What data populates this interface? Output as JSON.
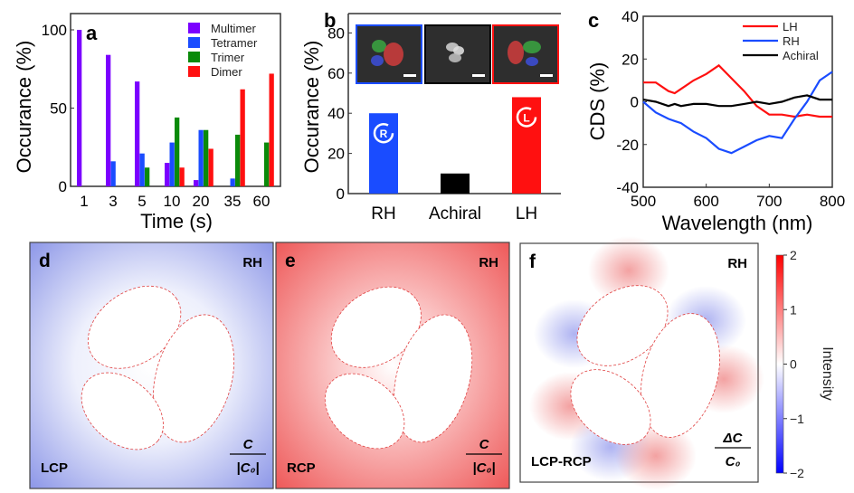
{
  "chart_data": [
    {
      "panel": "a",
      "type": "bar",
      "xlabel": "Time (s)",
      "ylabel": "Occurance (%)",
      "ylim": [
        0,
        110
      ],
      "yticks": [
        0,
        50,
        100
      ],
      "categories": [
        "1",
        "3",
        "5",
        "10",
        "20",
        "35",
        "60"
      ],
      "legend_position": "top-right",
      "series": [
        {
          "name": "Multimer",
          "color": "#7b00ff",
          "values": [
            100,
            84,
            67,
            15,
            4,
            0,
            0
          ]
        },
        {
          "name": "Tetramer",
          "color": "#1a4cff",
          "values": [
            0,
            16,
            21,
            28,
            36,
            5,
            0
          ]
        },
        {
          "name": "Trimer",
          "color": "#0a8a0a",
          "values": [
            0,
            0,
            12,
            44,
            36,
            33,
            28
          ]
        },
        {
          "name": "Dimer",
          "color": "#ff1010",
          "values": [
            0,
            0,
            0,
            12,
            24,
            62,
            72
          ]
        }
      ]
    },
    {
      "panel": "b",
      "type": "bar",
      "xlabel": "",
      "ylabel": "Occurance (%)",
      "ylim": [
        0,
        90
      ],
      "yticks": [
        0,
        20,
        40,
        60,
        80
      ],
      "categories": [
        "RH",
        "Achiral",
        "LH"
      ],
      "values": [
        40,
        10,
        48
      ],
      "colors": [
        "#1a4cff",
        "#000000",
        "#ff1010"
      ],
      "bar_icons": [
        "R",
        "",
        "L"
      ]
    },
    {
      "panel": "c",
      "type": "line",
      "xlabel": "Wavelength (nm)",
      "ylabel": "CDS (%)",
      "xlim": [
        500,
        800
      ],
      "ylim": [
        -40,
        40
      ],
      "xticks": [
        500,
        600,
        700,
        800
      ],
      "yticks": [
        -40,
        -20,
        0,
        20,
        40
      ],
      "legend_position": "top-right",
      "x": [
        500,
        520,
        540,
        550,
        560,
        580,
        600,
        620,
        640,
        660,
        680,
        700,
        720,
        740,
        760,
        780,
        800
      ],
      "series": [
        {
          "name": "LH",
          "color": "#ff1010",
          "values": [
            9,
            9,
            5,
            4,
            6,
            10,
            13,
            17,
            11,
            5,
            -2,
            -6,
            -6,
            -7,
            -6,
            -7,
            -7
          ]
        },
        {
          "name": "RH",
          "color": "#1a4cff",
          "values": [
            0,
            -5,
            -8,
            -9,
            -10,
            -14,
            -17,
            -22,
            -24,
            -21,
            -18,
            -16,
            -17,
            -8,
            0,
            10,
            14
          ]
        },
        {
          "name": "Achiral",
          "color": "#000000",
          "values": [
            1,
            0,
            -2,
            -1,
            -2,
            -1,
            -1,
            -2,
            -2,
            -1,
            0,
            -1,
            0,
            2,
            3,
            1,
            1
          ]
        }
      ]
    }
  ],
  "panels": {
    "a": {
      "label": "a"
    },
    "b": {
      "label": "b"
    },
    "c": {
      "label": "c"
    },
    "d": {
      "label": "d",
      "handedness": "RH",
      "polarization": "LCP",
      "formula_num": "C",
      "formula_den": "|C₀|"
    },
    "e": {
      "label": "e",
      "handedness": "RH",
      "polarization": "RCP",
      "formula_num": "C",
      "formula_den": "|C₀|"
    },
    "f": {
      "label": "f",
      "handedness": "RH",
      "polarization": "LCP-RCP",
      "formula_num": "ΔC",
      "formula_den": "C₀"
    }
  },
  "colorbar": {
    "label": "Intensity",
    "ticks": [
      "2",
      "1",
      "0",
      "−1",
      "−2"
    ],
    "min": -2,
    "max": 2,
    "colors": [
      "#0000ff",
      "#ffffff",
      "#ff0000"
    ]
  }
}
